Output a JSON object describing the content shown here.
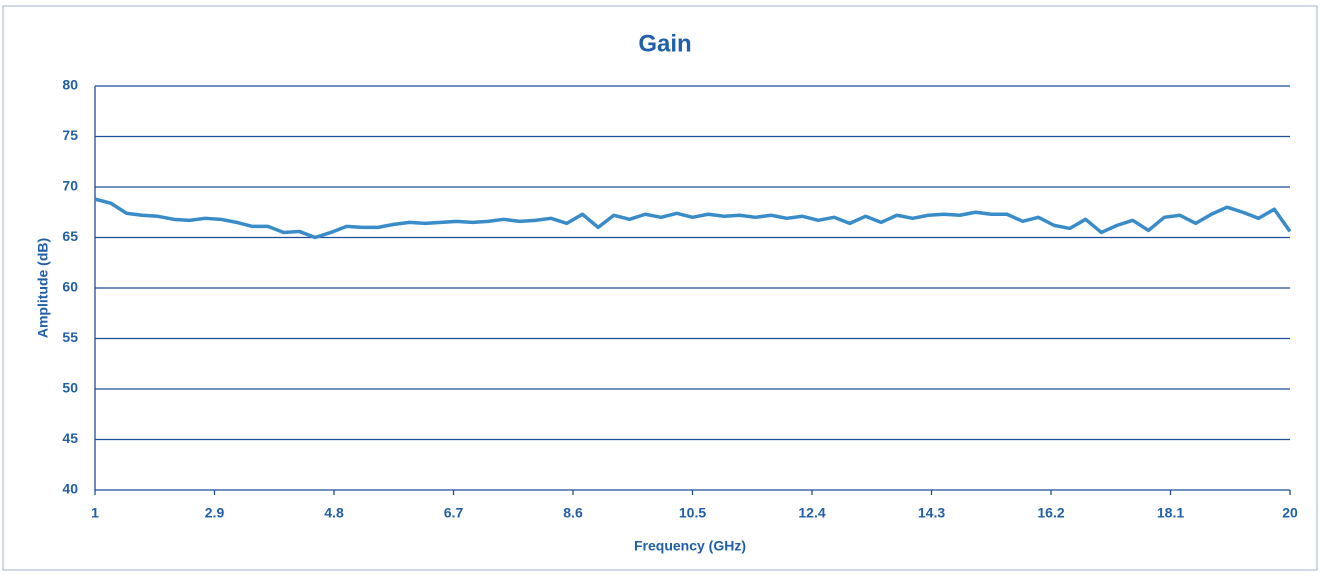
{
  "chart_data": {
    "type": "line",
    "title": "Gain",
    "x_label": "Frequency (GHz)",
    "y_label": "Amplitude (dB)",
    "x": [
      1,
      1.25,
      1.5,
      1.75,
      2,
      2.25,
      2.5,
      2.75,
      3,
      3.25,
      3.5,
      3.75,
      4,
      4.25,
      4.5,
      4.75,
      5,
      5.25,
      5.5,
      5.75,
      6,
      6.25,
      6.5,
      6.75,
      7,
      7.25,
      7.5,
      7.75,
      8,
      8.25,
      8.5,
      8.75,
      9,
      9.25,
      9.5,
      9.75,
      10,
      10.25,
      10.5,
      10.75,
      11,
      11.25,
      11.5,
      11.75,
      12,
      12.25,
      12.5,
      12.75,
      13,
      13.25,
      13.5,
      13.75,
      14,
      14.25,
      14.5,
      14.75,
      15,
      15.25,
      15.5,
      15.75,
      16,
      16.25,
      16.5,
      16.75,
      17,
      17.25,
      17.5,
      17.75,
      18,
      18.25,
      18.5,
      18.75,
      19,
      19.25,
      19.5,
      19.75,
      20
    ],
    "series": [
      {
        "name": "Gain",
        "color": "#3a8cc9",
        "values": [
          68.8,
          68.4,
          67.4,
          67.2,
          67.1,
          66.8,
          66.7,
          66.9,
          66.8,
          66.5,
          66.1,
          66.1,
          65.5,
          65.6,
          65.0,
          65.5,
          66.1,
          66.0,
          66.0,
          66.3,
          66.5,
          66.4,
          66.5,
          66.6,
          66.5,
          66.6,
          66.8,
          66.6,
          66.7,
          66.9,
          66.4,
          67.3,
          66.0,
          67.2,
          66.8,
          67.3,
          67.0,
          67.4,
          67.0,
          67.3,
          67.1,
          67.2,
          67.0,
          67.2,
          66.9,
          67.1,
          66.7,
          67.0,
          66.4,
          67.1,
          66.5,
          67.2,
          66.9,
          67.2,
          67.3,
          67.2,
          67.5,
          67.3,
          67.3,
          66.6,
          67.0,
          66.2,
          65.9,
          66.8,
          65.5,
          66.2,
          66.7,
          65.7,
          67.0,
          67.2,
          66.4,
          67.3,
          68.0,
          67.5,
          66.9,
          67.8,
          65.6
        ]
      }
    ],
    "xlim": [
      1,
      20
    ],
    "xticks": [
      1,
      2.9,
      4.8,
      6.7,
      8.6,
      10.5,
      12.4,
      14.3,
      16.2,
      18.1,
      20
    ],
    "ylim": [
      40,
      80
    ],
    "yticks": [
      40,
      45,
      50,
      55,
      60,
      65,
      70,
      75,
      80
    ],
    "grid": true
  }
}
